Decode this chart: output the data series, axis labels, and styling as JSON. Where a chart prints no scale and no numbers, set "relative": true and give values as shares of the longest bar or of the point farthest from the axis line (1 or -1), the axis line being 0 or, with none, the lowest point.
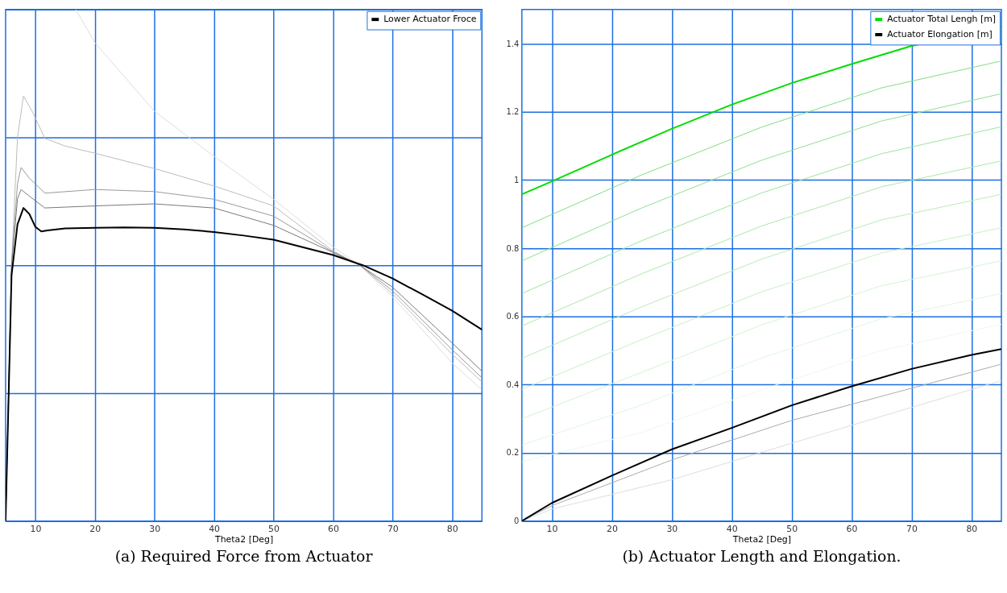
{
  "chart_data": [
    {
      "type": "line",
      "title": "(a) Required Force from Actuator",
      "xlabel": "Theta2 [Deg]",
      "relative": true,
      "xlim": [
        5,
        85
      ],
      "xticks": [
        10,
        20,
        30,
        40,
        50,
        60,
        70,
        80
      ],
      "grid": true,
      "legend": "top right",
      "series": [
        {
          "name": "Lower Actuator Froce",
          "color": "#000000",
          "x": [
            5,
            6,
            7,
            8,
            9,
            10,
            11,
            12,
            15,
            20,
            25,
            30,
            35,
            40,
            45,
            50,
            55,
            60,
            65,
            70,
            75,
            80,
            85
          ],
          "values": [
            0,
            0.48,
            0.58,
            0.612,
            0.6,
            0.575,
            0.566,
            0.568,
            0.572,
            0.573,
            0.574,
            0.573,
            0.57,
            0.565,
            0.558,
            0.55,
            0.535,
            0.52,
            0.5,
            0.474,
            0.443,
            0.411,
            0.374
          ]
        },
        {
          "color": "#777777",
          "x": [
            5,
            6,
            7,
            7.6,
            9,
            11.6,
            20,
            30,
            40,
            50,
            60,
            64.5,
            70,
            80,
            85
          ],
          "values": [
            0,
            0.5,
            0.63,
            0.648,
            0.635,
            0.612,
            0.616,
            0.62,
            0.612,
            0.578,
            0.525,
            0.5,
            0.457,
            0.348,
            0.293
          ]
        },
        {
          "color": "#999999",
          "x": [
            5,
            6,
            7,
            7.6,
            9,
            11.6,
            20,
            30,
            40,
            50,
            60,
            64.5,
            70,
            80,
            85
          ],
          "values": [
            0,
            0.5,
            0.66,
            0.691,
            0.67,
            0.641,
            0.648,
            0.644,
            0.629,
            0.596,
            0.526,
            0.5,
            0.45,
            0.335,
            0.28
          ]
        },
        {
          "color": "#bbbbbb",
          "x": [
            5,
            6,
            7,
            8,
            9.5,
            11.6,
            15,
            20,
            30,
            40,
            50,
            60,
            64.5,
            70,
            80,
            85
          ],
          "values": [
            0,
            0.5,
            0.75,
            0.831,
            0.8,
            0.748,
            0.733,
            0.719,
            0.689,
            0.655,
            0.616,
            0.528,
            0.5,
            0.444,
            0.326,
            0.272
          ]
        },
        {
          "color": "#dddddd",
          "x": [
            16.8,
            20,
            30,
            40,
            50,
            60,
            64.5,
            70,
            80,
            85
          ],
          "values": [
            1.0,
            0.935,
            0.801,
            0.713,
            0.629,
            0.536,
            0.5,
            0.438,
            0.309,
            0.256
          ]
        }
      ]
    },
    {
      "type": "line",
      "title": "(b) Actuator Length and Elongation.",
      "xlabel": "Theta2 [Deg]",
      "xlim": [
        5,
        85
      ],
      "xticks": [
        10,
        20,
        30,
        40,
        50,
        60,
        70,
        80
      ],
      "ylim": [
        0,
        1.5
      ],
      "yticks": [
        0,
        0.2,
        0.4,
        0.6,
        0.8,
        1,
        1.2,
        1.4
      ],
      "grid": true,
      "legend": "top right",
      "series": [
        {
          "name": "Actuator Total Lengh [m]",
          "color": "#00dd00",
          "x": [
            5,
            10,
            20,
            30,
            40,
            50,
            60,
            70,
            85
          ],
          "values": [
            0.958,
            0.996,
            1.074,
            1.15,
            1.221,
            1.284,
            1.34,
            1.393,
            1.45
          ]
        },
        {
          "name": "Actuator Elongation [m]",
          "color": "#000000",
          "x": [
            5,
            10,
            20,
            30,
            40,
            50,
            60,
            70,
            80,
            85
          ],
          "values": [
            0,
            0.053,
            0.133,
            0.21,
            0.273,
            0.339,
            0.395,
            0.446,
            0.487,
            0.504
          ]
        },
        {
          "color": "#aaaaaa",
          "x": [
            5,
            10,
            30,
            50,
            85
          ],
          "values": [
            0,
            0.045,
            0.179,
            0.295,
            0.46
          ]
        },
        {
          "color": "#dddddd",
          "x": [
            5,
            10,
            30,
            50,
            85
          ],
          "values": [
            0,
            0.035,
            0.121,
            0.228,
            0.412
          ]
        },
        {
          "color": "#80dd80",
          "x": [
            5,
            25,
            45,
            65,
            85
          ],
          "values": [
            0.86,
            1.015,
            1.155,
            1.27,
            1.349
          ]
        },
        {
          "color": "#8ee08e",
          "x": [
            5,
            25,
            45,
            65,
            85
          ],
          "values": [
            0.763,
            0.918,
            1.058,
            1.173,
            1.253
          ]
        },
        {
          "color": "#9be49b",
          "x": [
            5,
            25,
            45,
            65,
            85
          ],
          "values": [
            0.667,
            0.822,
            0.962,
            1.077,
            1.156
          ]
        },
        {
          "color": "#a9e8a9",
          "x": [
            5,
            25,
            45,
            65,
            85
          ],
          "values": [
            0.572,
            0.725,
            0.865,
            0.98,
            1.056
          ]
        },
        {
          "color": "#b7ecb7",
          "x": [
            5,
            25,
            45,
            65,
            85
          ],
          "values": [
            0.477,
            0.628,
            0.768,
            0.883,
            0.958
          ]
        },
        {
          "color": "#c5f0c5",
          "x": [
            5,
            25,
            45,
            65,
            85
          ],
          "values": [
            0.386,
            0.532,
            0.672,
            0.786,
            0.86
          ]
        },
        {
          "color": "#d3f3d3",
          "x": [
            5,
            25,
            45,
            65,
            85
          ],
          "values": [
            0.3,
            0.436,
            0.575,
            0.69,
            0.763
          ]
        },
        {
          "color": "#e0f6e0",
          "x": [
            5,
            25,
            45,
            65,
            85
          ],
          "values": [
            0.223,
            0.34,
            0.478,
            0.593,
            0.667
          ]
        },
        {
          "color": "#ebf9eb",
          "x": [
            5,
            25,
            45,
            65,
            85
          ],
          "values": [
            0.174,
            0.26,
            0.385,
            0.5,
            0.577
          ]
        }
      ]
    }
  ]
}
